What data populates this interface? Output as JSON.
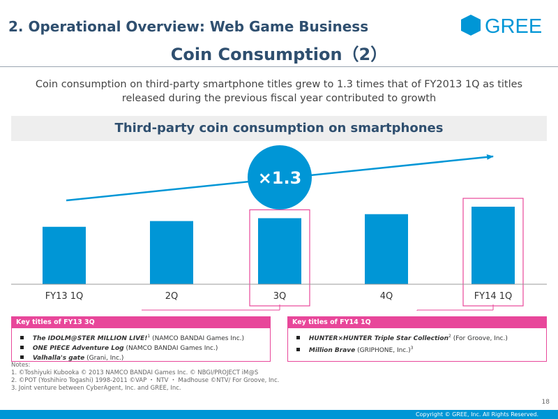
{
  "header": {
    "section_title": "2. Operational Overview: Web Game Business",
    "slide_title": "Coin Consumption（2）",
    "logo_text": "GREE",
    "brand_color": "#0096d6"
  },
  "subtitle": {
    "line1": "Coin consumption on third-party smartphone titles grew to 1.3 times that of FY2013 1Q as titles",
    "line2": "released during the previous fiscal year contributed to growth"
  },
  "chart_header": "Third-party coin consumption on smartphones",
  "chart_data": {
    "type": "bar",
    "title": "Third-party coin consumption on smartphones",
    "categories": [
      "FY13 1Q",
      "2Q",
      "3Q",
      "4Q",
      "FY14 1Q"
    ],
    "values": [
      1.0,
      1.1,
      1.15,
      1.22,
      1.35
    ],
    "ylim": [
      0,
      1.4
    ],
    "xlabel": "",
    "ylabel": "",
    "grid": false,
    "highlighted": [
      "3Q",
      "FY14 1Q"
    ],
    "growth_annotation": "×1.3",
    "bar_color": "#0096d6",
    "highlight_color": "#e8479a"
  },
  "key_titles_fy13_3q": {
    "header": "Key titles of FY13 3Q",
    "items": [
      {
        "title": "The IDOLM@STER MILLION LIVE!",
        "note": "1",
        "publisher": "(NAMCO BANDAI Games Inc.)"
      },
      {
        "title": "ONE PIECE Adventure Log",
        "note": "",
        "publisher": "(NAMCO BANDAI Games Inc.)"
      },
      {
        "title": "Valhalla's gate",
        "note": "",
        "publisher": "(Grani, Inc.)"
      }
    ]
  },
  "key_titles_fy14_1q": {
    "header": "Key titles of FY14 1Q",
    "items": [
      {
        "title": "HUNTER×HUNTER Triple Star Collection",
        "note": "2",
        "publisher": "(For Groove, Inc.)"
      },
      {
        "title": "Million Brave",
        "note": "3",
        "publisher": "(GRIPHONE, Inc.)"
      }
    ]
  },
  "notes": {
    "heading": "Notes:",
    "lines": [
      "1. ©Toshiyuki Kubooka © 2013 NAMCO BANDAI Games Inc. © NBGI/PROJECT iM@S",
      "2. ©POT (Yoshihiro Togashi) 1998-2011 ©VAP ・ NTV ・ Madhouse ©NTV/ For Groove, Inc.",
      "3. Joint venture between CyberAgent, Inc. and GREE, Inc."
    ]
  },
  "page_number": "18",
  "footer": {
    "copyright": "Copyright © GREE, Inc. All Rights Reserved."
  }
}
